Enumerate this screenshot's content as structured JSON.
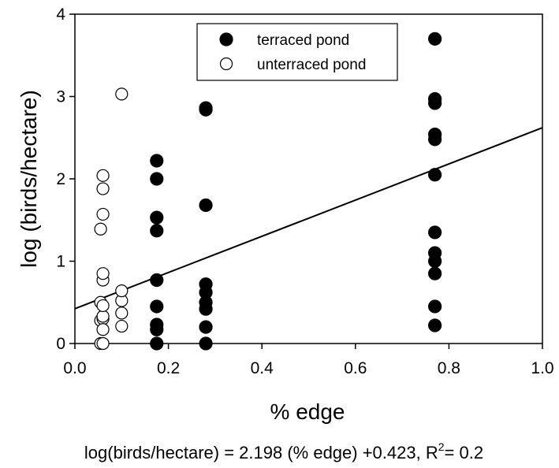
{
  "chart_data": {
    "type": "scatter",
    "title": "",
    "xlabel": "% edge",
    "ylabel": "log (birds/hectare)",
    "xlim": [
      0.0,
      1.0
    ],
    "ylim": [
      0,
      4
    ],
    "x_ticks": [
      "0.0",
      "0.2",
      "0.4",
      "0.6",
      "0.8",
      "1.0"
    ],
    "y_ticks": [
      "0",
      "1",
      "2",
      "3",
      "4"
    ],
    "grid": false,
    "legend_position": "top-center",
    "series": [
      {
        "name": "terraced pond",
        "marker": "filled-circle",
        "color": "#000000",
        "points": [
          [
            0.175,
            0.0
          ],
          [
            0.175,
            0.17
          ],
          [
            0.175,
            0.23
          ],
          [
            0.175,
            0.45
          ],
          [
            0.175,
            0.77
          ],
          [
            0.175,
            1.37
          ],
          [
            0.175,
            1.53
          ],
          [
            0.175,
            2.0
          ],
          [
            0.175,
            2.22
          ],
          [
            0.28,
            0.0
          ],
          [
            0.28,
            0.2
          ],
          [
            0.28,
            0.42
          ],
          [
            0.28,
            0.5
          ],
          [
            0.28,
            0.62
          ],
          [
            0.28,
            0.72
          ],
          [
            0.28,
            1.68
          ],
          [
            0.28,
            2.84
          ],
          [
            0.28,
            2.86
          ],
          [
            0.77,
            0.22
          ],
          [
            0.77,
            0.45
          ],
          [
            0.77,
            0.85
          ],
          [
            0.77,
            1.0
          ],
          [
            0.77,
            1.1
          ],
          [
            0.77,
            1.35
          ],
          [
            0.77,
            2.05
          ],
          [
            0.77,
            2.48
          ],
          [
            0.77,
            2.54
          ],
          [
            0.77,
            2.92
          ],
          [
            0.77,
            2.97
          ],
          [
            0.77,
            3.7
          ]
        ]
      },
      {
        "name": "unterraced pond",
        "marker": "open-circle",
        "color": "#000000",
        "points": [
          [
            0.055,
            0.0
          ],
          [
            0.06,
            0.0
          ],
          [
            0.055,
            0.28
          ],
          [
            0.06,
            0.3
          ],
          [
            0.055,
            0.5
          ],
          [
            0.055,
            1.39
          ],
          [
            0.06,
            0.17
          ],
          [
            0.06,
            0.33
          ],
          [
            0.06,
            0.46
          ],
          [
            0.06,
            0.77
          ],
          [
            0.06,
            0.85
          ],
          [
            0.06,
            1.57
          ],
          [
            0.06,
            1.88
          ],
          [
            0.06,
            2.04
          ],
          [
            0.1,
            0.21
          ],
          [
            0.1,
            0.37
          ],
          [
            0.1,
            0.52
          ],
          [
            0.1,
            0.64
          ],
          [
            0.1,
            3.03
          ]
        ]
      }
    ],
    "regression": {
      "slope": 2.198,
      "intercept": 0.423,
      "equation_text": "log(birds/hectare) = 2.198 (% edge) +0.423, R",
      "r2_sup": "2",
      "r2_value_text": "= 0.2"
    }
  }
}
